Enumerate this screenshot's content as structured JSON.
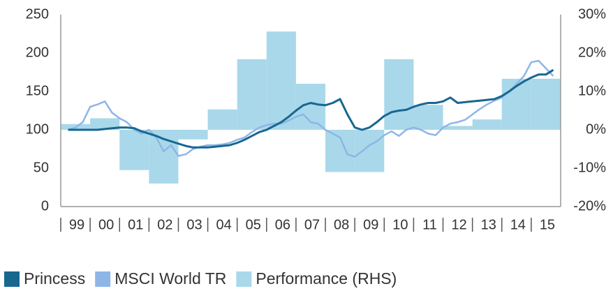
{
  "chart_data": {
    "type": "bar-line",
    "categories": [
      "99",
      "00",
      "01",
      "02",
      "03",
      "04",
      "05",
      "06",
      "07",
      "08",
      "09",
      "10",
      "11",
      "12",
      "13",
      "14",
      "15"
    ],
    "xlim": [
      1999,
      2016
    ],
    "x": [
      1999.25,
      1999.5,
      1999.75,
      2000,
      2000.25,
      2000.5,
      2000.75,
      2001,
      2001.25,
      2001.5,
      2001.75,
      2002,
      2002.25,
      2002.5,
      2002.75,
      2003,
      2003.25,
      2003.5,
      2003.75,
      2004,
      2004.25,
      2004.5,
      2004.75,
      2005,
      2005.25,
      2005.5,
      2005.75,
      2006,
      2006.25,
      2006.5,
      2006.75,
      2007,
      2007.25,
      2007.5,
      2007.75,
      2008,
      2008.25,
      2008.5,
      2008.75,
      2009,
      2009.25,
      2009.5,
      2009.75,
      2010,
      2010.25,
      2010.5,
      2010.75,
      2011,
      2011.25,
      2011.5,
      2011.75,
      2012,
      2012.25,
      2012.5,
      2012.75,
      2013,
      2013.25,
      2013.5,
      2013.75,
      2014,
      2014.25,
      2014.5,
      2014.75,
      2015,
      2015.25,
      2015.5,
      2015.75
    ],
    "ylim": [
      0,
      250
    ],
    "yticks": [
      0,
      50,
      100,
      150,
      200,
      250
    ],
    "y2lim": [
      -20,
      30
    ],
    "y2ticks": [
      {
        "value": -20,
        "label": "-20%"
      },
      {
        "value": -10,
        "label": "-10%"
      },
      {
        "value": 0,
        "label": "0%"
      },
      {
        "value": 10,
        "label": "10%"
      },
      {
        "value": 20,
        "label": "20%"
      },
      {
        "value": 30,
        "label": "30%"
      }
    ],
    "series": [
      {
        "name": "Princess",
        "color": "#17678f",
        "kind": "line",
        "values": [
          100,
          100,
          100,
          100,
          100,
          101,
          102,
          103,
          103,
          102,
          98,
          95,
          92,
          88,
          85,
          82,
          79,
          77,
          77,
          77,
          78,
          79,
          80,
          83,
          87,
          92,
          97,
          100,
          105,
          110,
          117,
          125,
          132,
          135,
          133,
          132,
          135,
          140,
          120,
          103,
          100,
          103,
          110,
          118,
          123,
          125,
          126,
          130,
          133,
          135,
          135,
          137,
          142,
          135,
          136,
          137,
          138,
          139,
          140,
          144,
          150,
          157,
          163,
          168,
          172,
          172,
          178
        ]
      },
      {
        "name": "MSCI World TR",
        "color": "#8db6e6",
        "kind": "line",
        "values": [
          100,
          103,
          110,
          130,
          133,
          137,
          122,
          115,
          110,
          100,
          95,
          100,
          90,
          72,
          80,
          66,
          68,
          75,
          78,
          80,
          80,
          81,
          83,
          87,
          90,
          97,
          103,
          106,
          108,
          108,
          112,
          117,
          120,
          110,
          108,
          100,
          95,
          90,
          68,
          65,
          72,
          80,
          85,
          93,
          98,
          92,
          100,
          103,
          100,
          95,
          93,
          103,
          108,
          110,
          113,
          120,
          127,
          133,
          138,
          142,
          150,
          160,
          170,
          188,
          190,
          180,
          170
        ]
      },
      {
        "name": "Performance (RHS)",
        "color": "#a9d8ea",
        "kind": "bar",
        "axis": "y2",
        "values": [
          1.5,
          3,
          -10.5,
          -14,
          -2.5,
          5.3,
          18.4,
          25.6,
          12,
          -11,
          -11,
          18.4,
          6.5,
          1,
          2.7,
          13.3,
          13.3
        ]
      }
    ]
  }
}
